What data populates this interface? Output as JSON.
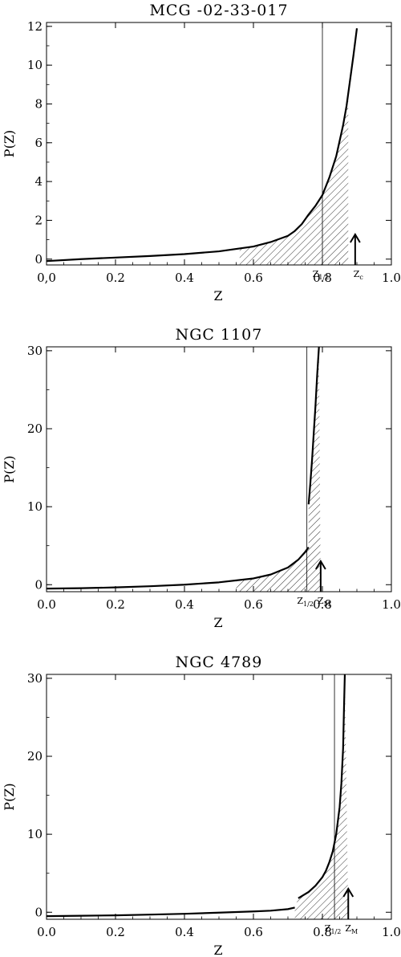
{
  "figure": {
    "xlabel": "Z",
    "ylabel": "P(Z)"
  },
  "chart_data": [
    {
      "type": "line",
      "title": "MCG -02-33-017",
      "xlabel": "Z",
      "ylabel": "P(Z)",
      "xlim": [
        0.0,
        1.0
      ],
      "ylim": [
        -0.3,
        12.2
      ],
      "x_ticks": [
        0.0,
        0.2,
        0.4,
        0.6,
        0.8,
        1.0
      ],
      "x_tick_labels": [
        "0,0",
        "0.2",
        "0.4",
        "0.6",
        "0.8",
        "1.0"
      ],
      "y_ticks": [
        0,
        2,
        4,
        6,
        8,
        10,
        12
      ],
      "y_tick_labels": [
        "0",
        "2",
        "4",
        "6",
        "8",
        "10",
        "12"
      ],
      "series": [
        {
          "x": [
            0.0,
            0.1,
            0.2,
            0.3,
            0.4,
            0.5,
            0.6,
            0.65,
            0.7,
            0.72,
            0.74,
            0.76,
            0.78,
            0.8,
            0.82,
            0.84,
            0.86,
            0.87,
            0.88,
            0.89,
            0.9
          ],
          "y": [
            -0.1,
            0.0,
            0.08,
            0.16,
            0.26,
            0.4,
            0.65,
            0.88,
            1.2,
            1.45,
            1.8,
            2.3,
            2.75,
            3.3,
            4.2,
            5.3,
            6.9,
            7.9,
            9.2,
            10.5,
            11.9
          ]
        }
      ],
      "shaded_region": [
        0.56,
        0.875
      ],
      "half_line": 0.8,
      "markers": [
        {
          "label": "Z",
          "sub": "1/2",
          "x": 0.8,
          "arrow": false
        },
        {
          "label": "Z",
          "sub": "c",
          "x": 0.895,
          "arrow": true
        }
      ]
    },
    {
      "type": "line",
      "title": "NGC 1107",
      "xlabel": "Z",
      "ylabel": "P(Z)",
      "xlim": [
        0.0,
        1.0
      ],
      "ylim": [
        -0.9,
        30.5
      ],
      "x_ticks": [
        0.0,
        0.2,
        0.4,
        0.6,
        0.8,
        1.0
      ],
      "x_tick_labels": [
        "0.0",
        "0.2",
        "0.4",
        "0.6",
        "0.8",
        "1.0"
      ],
      "y_ticks": [
        0,
        10,
        20,
        30
      ],
      "y_tick_labels": [
        "0",
        "10",
        "20",
        "30"
      ],
      "series": [
        {
          "x": [
            0.0,
            0.1,
            0.2,
            0.3,
            0.4,
            0.5,
            0.6,
            0.65,
            0.7,
            0.73,
            0.75,
            0.76
          ],
          "y": [
            -0.5,
            -0.45,
            -0.35,
            -0.2,
            0.0,
            0.3,
            0.8,
            1.3,
            2.2,
            3.2,
            4.2,
            4.8
          ]
        },
        {
          "x": [
            0.76,
            0.765,
            0.77,
            0.775,
            0.78,
            0.785,
            0.79
          ],
          "y": [
            10.3,
            13.0,
            16.0,
            19.5,
            23.0,
            27.0,
            30.5
          ]
        }
      ],
      "shaded_region": [
        0.55,
        0.795
      ],
      "half_line": 0.755,
      "markers": [
        {
          "label": "Z",
          "sub": "1/2",
          "x": 0.755,
          "arrow": false
        },
        {
          "label": "Z",
          "sub": "M",
          "x": 0.795,
          "arrow": true
        }
      ]
    },
    {
      "type": "line",
      "title": "NGC 4789",
      "xlabel": "Z",
      "ylabel": "P(Z)",
      "xlim": [
        0.0,
        1.0
      ],
      "ylim": [
        -0.9,
        30.5
      ],
      "x_ticks": [
        0.0,
        0.2,
        0.4,
        0.6,
        0.8,
        1.0
      ],
      "x_tick_labels": [
        "0.0",
        "0.2",
        "0.4",
        "0.6",
        "0.8",
        "1.0"
      ],
      "y_ticks": [
        0,
        10,
        20,
        30
      ],
      "y_tick_labels": [
        "0",
        "10",
        "20",
        "30"
      ],
      "series": [
        {
          "x": [
            0.0,
            0.1,
            0.2,
            0.3,
            0.4,
            0.5,
            0.6,
            0.65,
            0.7,
            0.72
          ],
          "y": [
            -0.5,
            -0.45,
            -0.4,
            -0.3,
            -0.2,
            -0.05,
            0.1,
            0.2,
            0.4,
            0.6
          ]
        },
        {
          "x": [
            0.73,
            0.76,
            0.78,
            0.8,
            0.81,
            0.82,
            0.83,
            0.84,
            0.85,
            0.855,
            0.86,
            0.862,
            0.865
          ],
          "y": [
            1.8,
            2.6,
            3.4,
            4.5,
            5.3,
            6.4,
            7.8,
            10.0,
            13.5,
            16.5,
            21.0,
            25.0,
            30.5
          ]
        }
      ],
      "shaded_region": [
        0.72,
        0.875
      ],
      "half_line": 0.835,
      "markers": [
        {
          "label": "Z",
          "sub": "1/2",
          "x": 0.835,
          "arrow": false
        },
        {
          "label": "Z",
          "sub": "M",
          "x": 0.875,
          "arrow": true
        }
      ]
    }
  ]
}
